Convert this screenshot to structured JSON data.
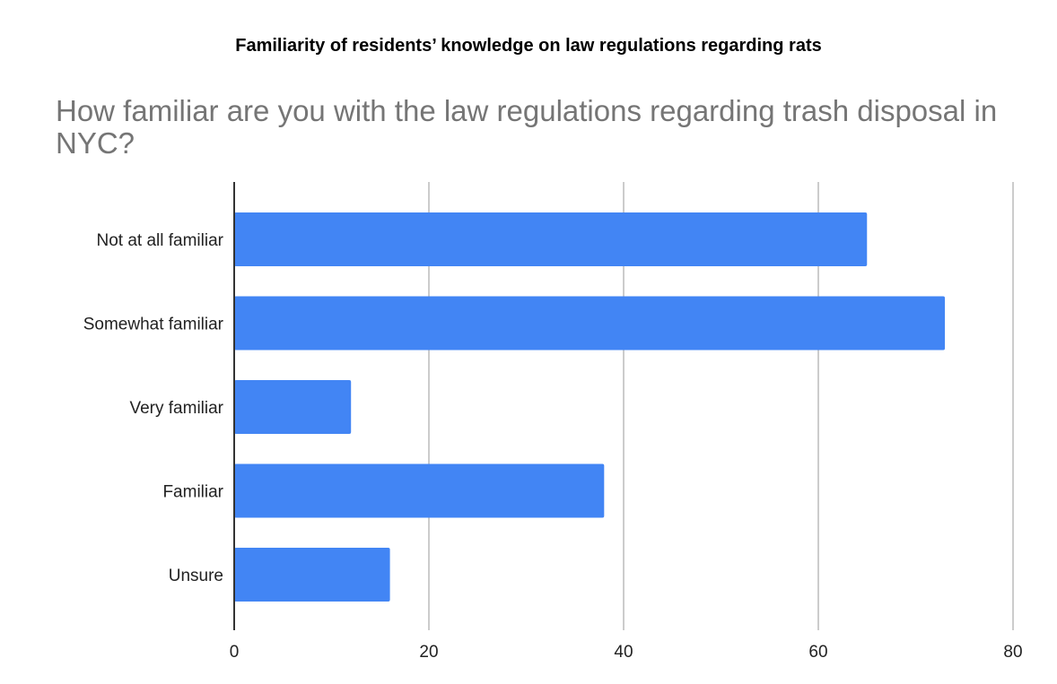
{
  "page": {
    "figure_title": "Familiarity of residents’ knowledge on law regulations regarding rats"
  },
  "chart_data": {
    "type": "bar",
    "orientation": "horizontal",
    "title": " How familiar are you with the law regulations regarding trash disposal in NYC?",
    "categories": [
      "Not at all familiar",
      "Somewhat familiar",
      "Very familiar",
      "Familiar",
      "Unsure"
    ],
    "values": [
      65,
      73,
      12,
      38,
      16
    ],
    "xlim": [
      0,
      80
    ],
    "xticks": [
      0,
      20,
      40,
      60,
      80
    ],
    "xlabel": "",
    "ylabel": "",
    "grid": true,
    "legend": "none",
    "bar_color": "#4285f4",
    "grid_color": "#cccccc",
    "axis_color": "#333333"
  }
}
